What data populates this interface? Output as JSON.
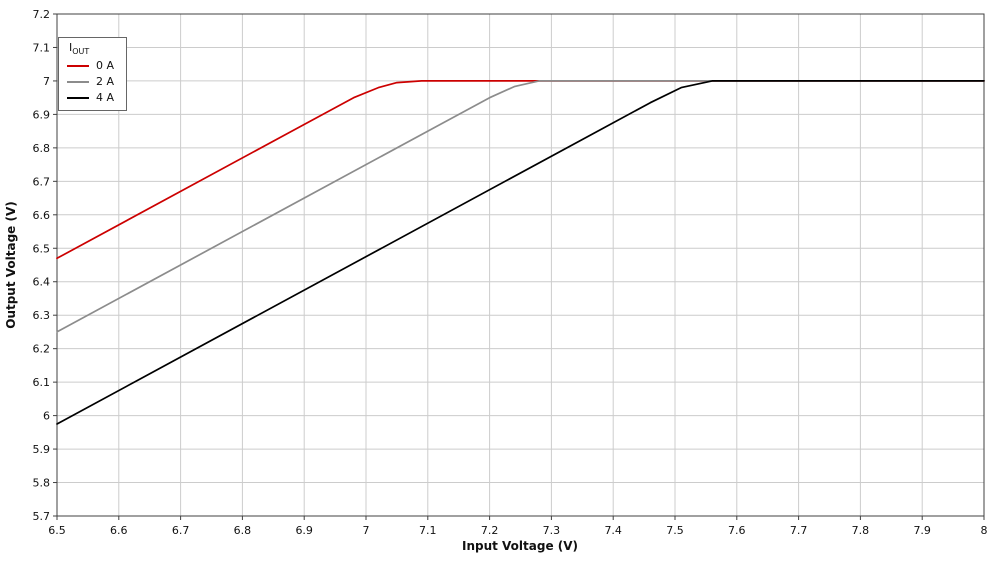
{
  "chart_data": {
    "type": "line",
    "title": "",
    "xlabel": "Input Voltage (V)",
    "ylabel": "Output Voltage (V)",
    "xlim": [
      6.5,
      8
    ],
    "ylim": [
      5.7,
      7.2
    ],
    "xticks": [
      "6.5",
      "6.6",
      "6.7",
      "6.8",
      "6.9",
      "7",
      "7.1",
      "7.2",
      "7.3",
      "7.4",
      "7.5",
      "7.6",
      "7.7",
      "7.8",
      "7.9",
      "8"
    ],
    "yticks": [
      "5.7",
      "5.8",
      "5.9",
      "6",
      "6.1",
      "6.2",
      "6.3",
      "6.4",
      "6.5",
      "6.6",
      "6.7",
      "6.8",
      "6.9",
      "7",
      "7.1",
      "7.2"
    ],
    "grid": true,
    "legend": {
      "position": "top-left",
      "title_main": "I",
      "title_sub": "OUT",
      "entries": [
        {
          "label": "0 A",
          "color": "#cc0000"
        },
        {
          "label": "2 A",
          "color": "#8c8c8c"
        },
        {
          "label": "4 A",
          "color": "#000000"
        }
      ]
    },
    "colors": {
      "grid": "#cccccc",
      "axis": "#404040",
      "background": "#ffffff",
      "series_0A": "#cc0000",
      "series_2A": "#8c8c8c",
      "series_4A": "#000000"
    },
    "series": [
      {
        "name": "0 A",
        "color": "#cc0000",
        "points": [
          [
            6.5,
            6.47
          ],
          [
            6.98,
            6.95
          ],
          [
            7.02,
            6.98
          ],
          [
            7.05,
            6.995
          ],
          [
            7.09,
            7.0
          ],
          [
            8.0,
            7.0
          ]
        ]
      },
      {
        "name": "2 A",
        "color": "#8c8c8c",
        "points": [
          [
            6.5,
            6.25
          ],
          [
            7.2,
            6.95
          ],
          [
            7.24,
            6.983
          ],
          [
            7.28,
            7.0
          ],
          [
            8.0,
            7.0
          ]
        ]
      },
      {
        "name": "4 A",
        "color": "#000000",
        "points": [
          [
            6.5,
            5.975
          ],
          [
            7.46,
            6.935
          ],
          [
            7.51,
            6.98
          ],
          [
            7.56,
            7.0
          ],
          [
            8.0,
            7.0
          ]
        ]
      }
    ]
  }
}
